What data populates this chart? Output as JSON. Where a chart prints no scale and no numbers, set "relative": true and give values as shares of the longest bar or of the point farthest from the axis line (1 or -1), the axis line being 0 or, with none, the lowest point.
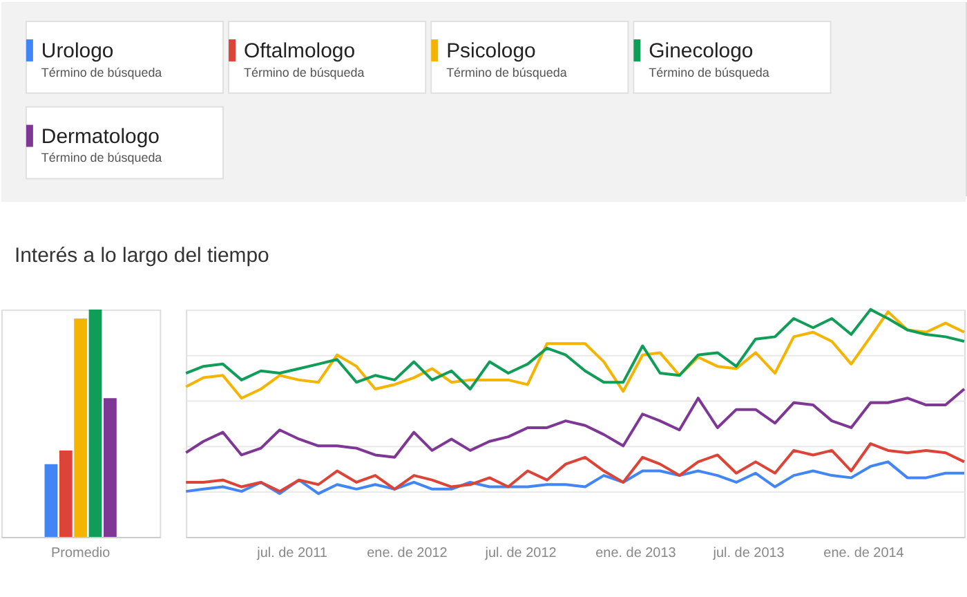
{
  "chart_data": [
    {
      "type": "bar",
      "relative": true,
      "categories": [
        "Promedio"
      ],
      "tick_labels": "x",
      "series": [
        {
          "color": "#4285f4",
          "values": [
            0.32
          ]
        },
        {
          "color": "#db4437",
          "values": [
            0.38
          ]
        },
        {
          "color": "#f4b400",
          "values": [
            0.96
          ]
        },
        {
          "color": "#0f9d58",
          "values": [
            1.0
          ]
        },
        {
          "color": "#7e3794",
          "values": [
            0.61
          ]
        }
      ]
    },
    {
      "type": "line",
      "relative": true,
      "title": "Interés a lo largo del tiempo",
      "legend": "top",
      "grid": "y",
      "tick_labels": "x",
      "marker": "none",
      "line_style": "solid",
      "annotations": [
        "Término de búsqueda",
        "Término de búsqueda",
        "Término de búsqueda",
        "Término de búsqueda",
        "Término de búsqueda"
      ],
      "x": [
        "2011-02",
        "2011-03",
        "2011-04",
        "2011-05",
        "2011-06",
        "2011-07",
        "2011-08",
        "2011-09",
        "2011-10",
        "2011-11",
        "2011-12",
        "2012-01",
        "2012-02",
        "2012-03",
        "2012-04",
        "2012-05",
        "2012-06",
        "2012-07",
        "2012-08",
        "2012-09",
        "2012-10",
        "2012-11",
        "2012-12",
        "2013-01",
        "2013-02",
        "2013-03",
        "2013-04",
        "2013-05",
        "2013-06",
        "2013-07",
        "2013-08",
        "2013-09",
        "2013-10",
        "2013-11",
        "2013-12",
        "2014-01",
        "2014-02",
        "2014-03",
        "2014-04",
        "2014-05",
        "2014-06",
        "2014-07"
      ],
      "xlim": [
        "2011-02",
        "2014-07"
      ],
      "xticks": [
        {
          "value": "2011-07-20",
          "label": "jul. de 2011"
        },
        {
          "value": "2012-01-20",
          "label": "ene. de 2012"
        },
        {
          "value": "2012-07-20",
          "label": "jul. de 2012"
        },
        {
          "value": "2013-01-20",
          "label": "ene. de 2013"
        },
        {
          "value": "2013-07-20",
          "label": "jul. de 2013"
        },
        {
          "value": "2014-01-20",
          "label": "ene. de 2014"
        }
      ],
      "series": [
        {
          "name": "Urologo",
          "color": "#4285f4",
          "values": [
            0.2,
            0.21,
            0.22,
            0.2,
            0.24,
            0.19,
            0.25,
            0.19,
            0.23,
            0.21,
            0.23,
            0.21,
            0.24,
            0.21,
            0.21,
            0.24,
            0.22,
            0.22,
            0.22,
            0.23,
            0.23,
            0.22,
            0.27,
            0.24,
            0.29,
            0.29,
            0.27,
            0.29,
            0.27,
            0.24,
            0.28,
            0.22,
            0.27,
            0.29,
            0.27,
            0.26,
            0.31,
            0.33,
            0.26,
            0.26,
            0.28,
            0.28
          ]
        },
        {
          "name": "Oftalmologo",
          "color": "#db4437",
          "values": [
            0.24,
            0.24,
            0.25,
            0.22,
            0.24,
            0.2,
            0.25,
            0.23,
            0.29,
            0.24,
            0.27,
            0.21,
            0.27,
            0.25,
            0.22,
            0.23,
            0.26,
            0.22,
            0.29,
            0.25,
            0.32,
            0.35,
            0.29,
            0.24,
            0.35,
            0.32,
            0.27,
            0.33,
            0.36,
            0.28,
            0.33,
            0.28,
            0.38,
            0.36,
            0.38,
            0.29,
            0.41,
            0.38,
            0.37,
            0.38,
            0.37,
            0.33
          ]
        },
        {
          "name": "Psicologo",
          "color": "#f4b400",
          "values": [
            0.66,
            0.7,
            0.71,
            0.61,
            0.65,
            0.71,
            0.69,
            0.68,
            0.8,
            0.75,
            0.65,
            0.67,
            0.7,
            0.74,
            0.68,
            0.69,
            0.69,
            0.69,
            0.67,
            0.85,
            0.85,
            0.85,
            0.77,
            0.64,
            0.8,
            0.81,
            0.71,
            0.79,
            0.75,
            0.74,
            0.81,
            0.72,
            0.88,
            0.9,
            0.86,
            0.76,
            0.88,
            0.99,
            0.91,
            0.9,
            0.94,
            0.9
          ]
        },
        {
          "name": "Ginecologo",
          "color": "#0f9d58",
          "values": [
            0.72,
            0.75,
            0.76,
            0.69,
            0.73,
            0.72,
            0.74,
            0.76,
            0.78,
            0.68,
            0.71,
            0.69,
            0.77,
            0.69,
            0.73,
            0.65,
            0.77,
            0.72,
            0.76,
            0.83,
            0.8,
            0.73,
            0.68,
            0.68,
            0.84,
            0.72,
            0.71,
            0.8,
            0.81,
            0.75,
            0.87,
            0.88,
            0.96,
            0.92,
            0.96,
            0.89,
            1.0,
            0.96,
            0.91,
            0.89,
            0.88,
            0.86
          ]
        },
        {
          "name": "Dermatologo",
          "color": "#7e3794",
          "values": [
            0.37,
            0.42,
            0.46,
            0.36,
            0.39,
            0.47,
            0.43,
            0.4,
            0.4,
            0.39,
            0.36,
            0.35,
            0.46,
            0.38,
            0.43,
            0.38,
            0.42,
            0.44,
            0.48,
            0.48,
            0.51,
            0.49,
            0.45,
            0.4,
            0.54,
            0.51,
            0.47,
            0.61,
            0.48,
            0.56,
            0.56,
            0.5,
            0.59,
            0.58,
            0.51,
            0.48,
            0.59,
            0.59,
            0.61,
            0.58,
            0.58,
            0.65
          ]
        }
      ]
    }
  ]
}
